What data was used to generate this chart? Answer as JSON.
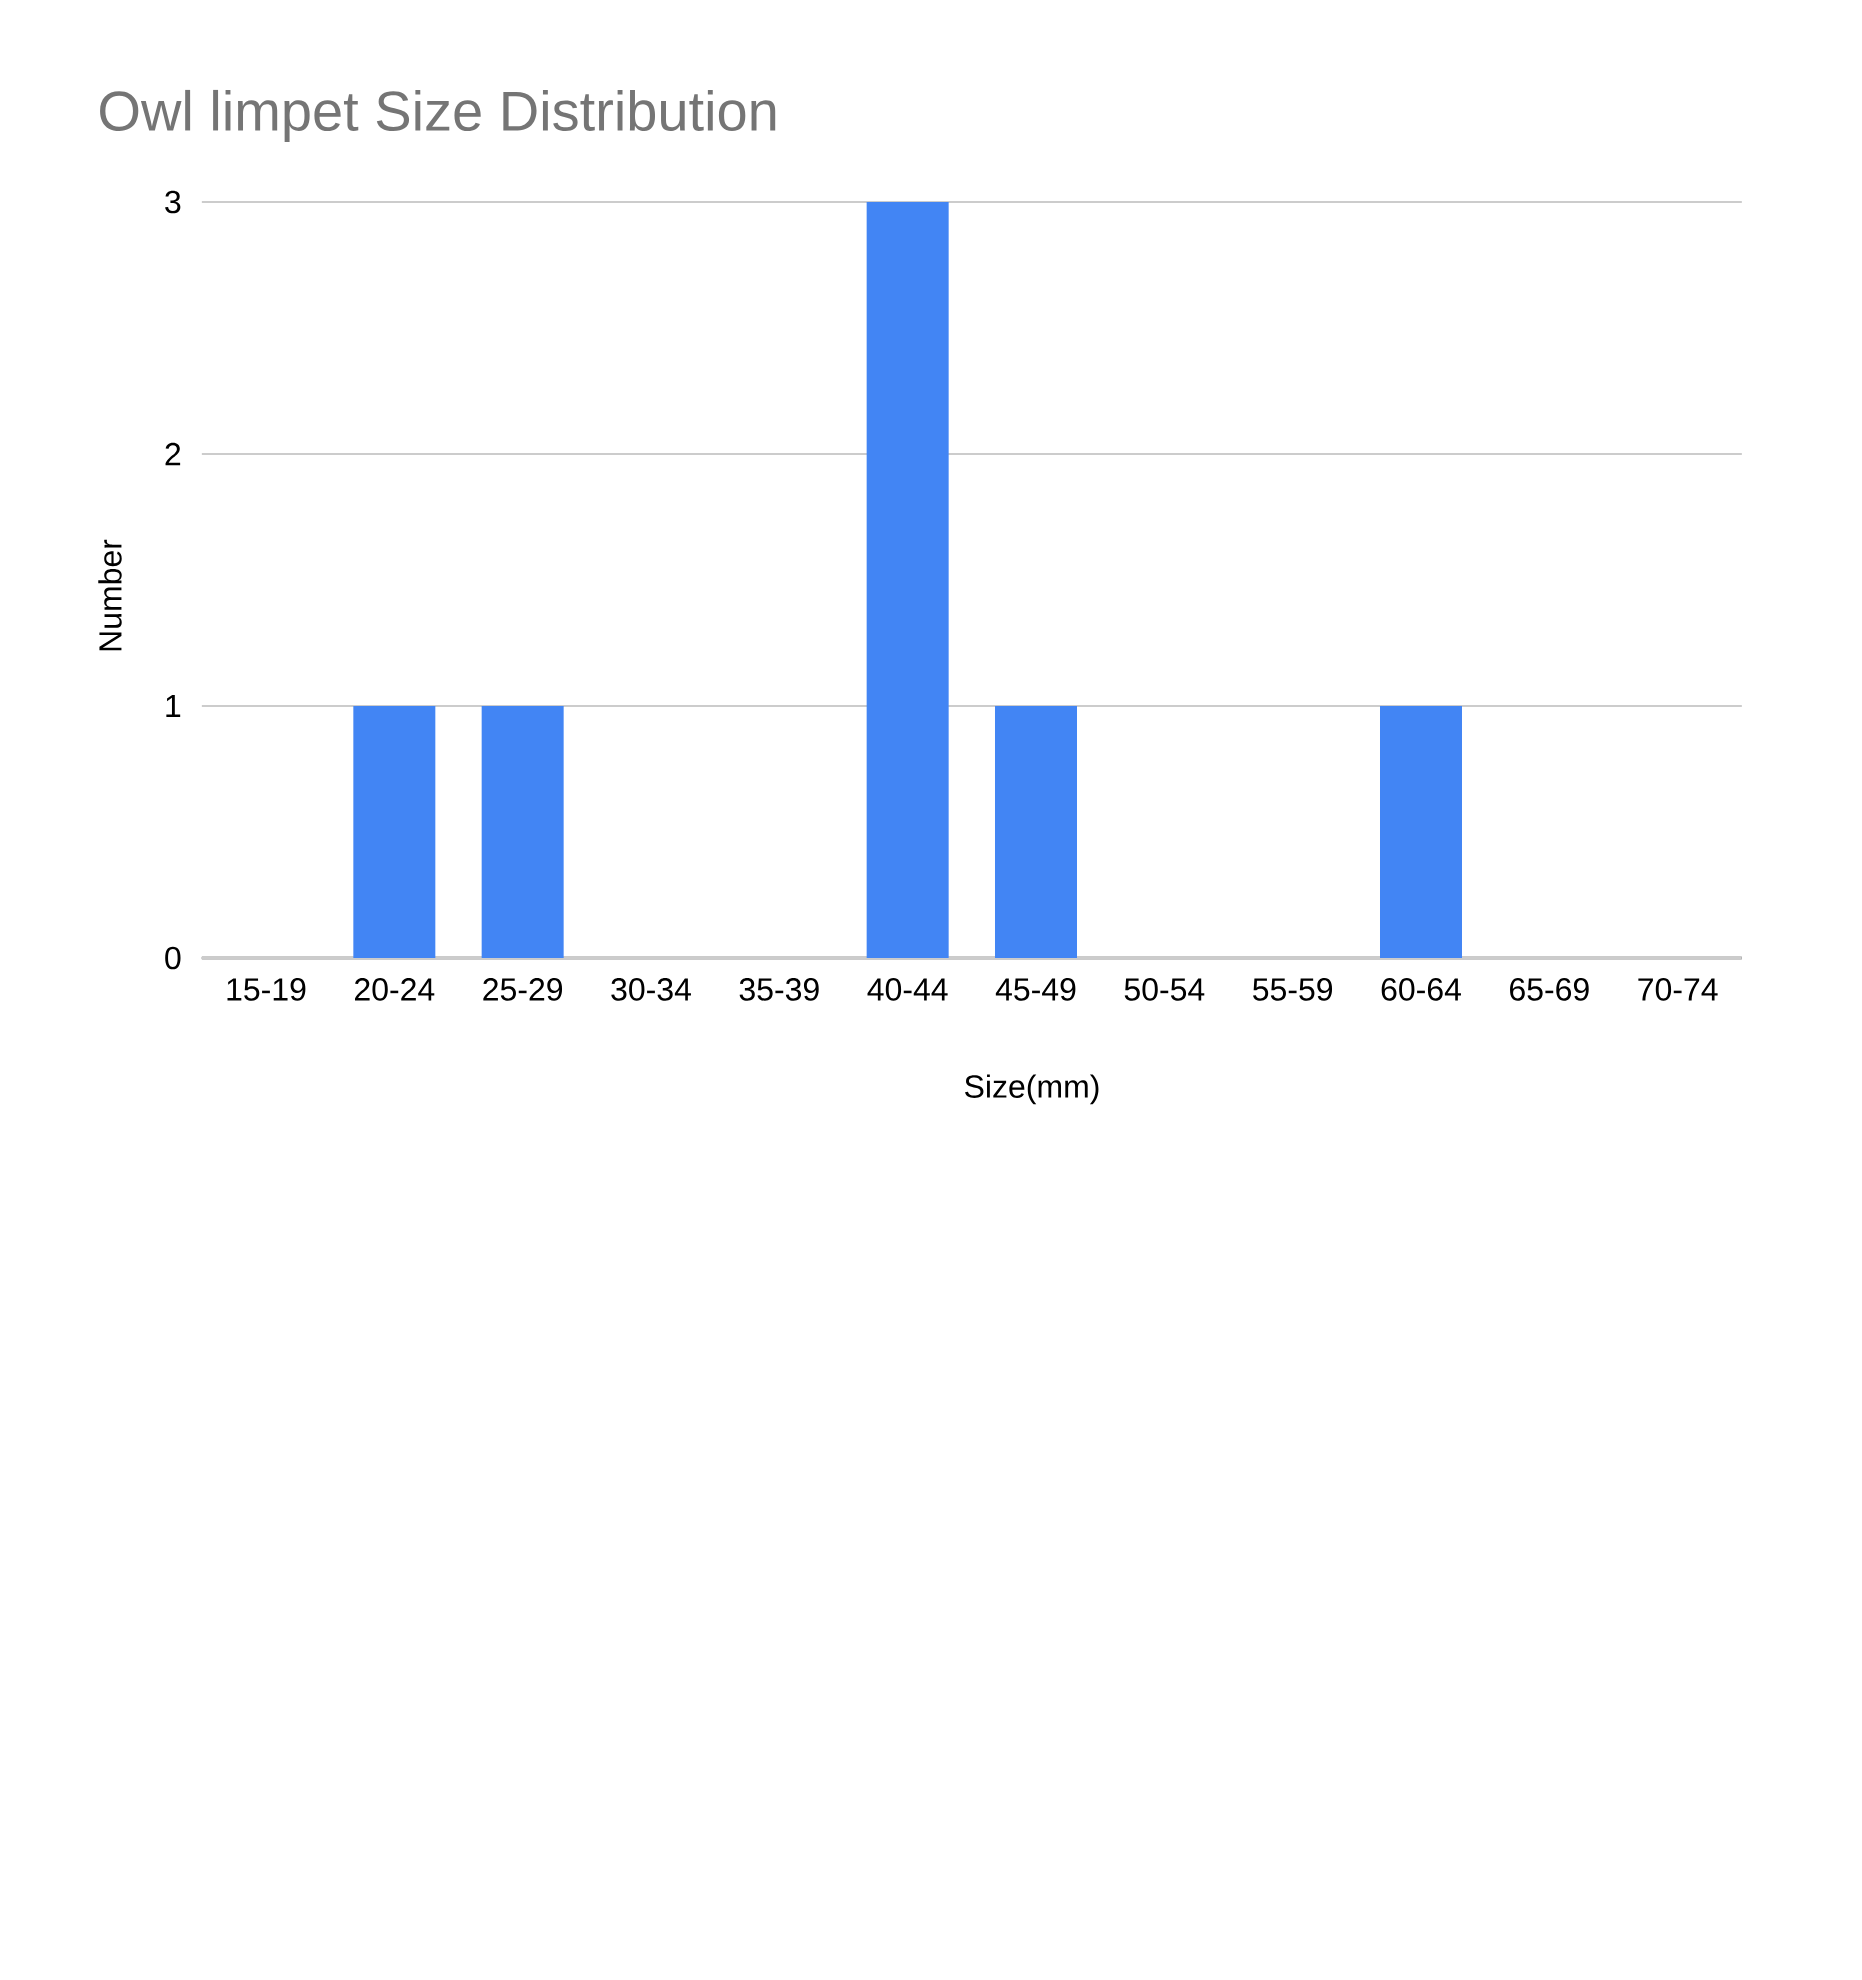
{
  "chart_data": {
    "type": "bar",
    "title": "Owl limpet Size Distribution",
    "xlabel": "Size(mm)",
    "ylabel": "Number",
    "categories": [
      "15-19",
      "20-24",
      "25-29",
      "30-34",
      "35-39",
      "40-44",
      "45-49",
      "50-54",
      "55-59",
      "60-64",
      "65-69",
      "70-74"
    ],
    "values": [
      0,
      1,
      1,
      0,
      0,
      3,
      1,
      0,
      0,
      1,
      0,
      0
    ],
    "color": "#4285f4",
    "ylim": [
      0,
      3
    ],
    "yticks": [
      0,
      1,
      2,
      3
    ],
    "grid": "y"
  }
}
